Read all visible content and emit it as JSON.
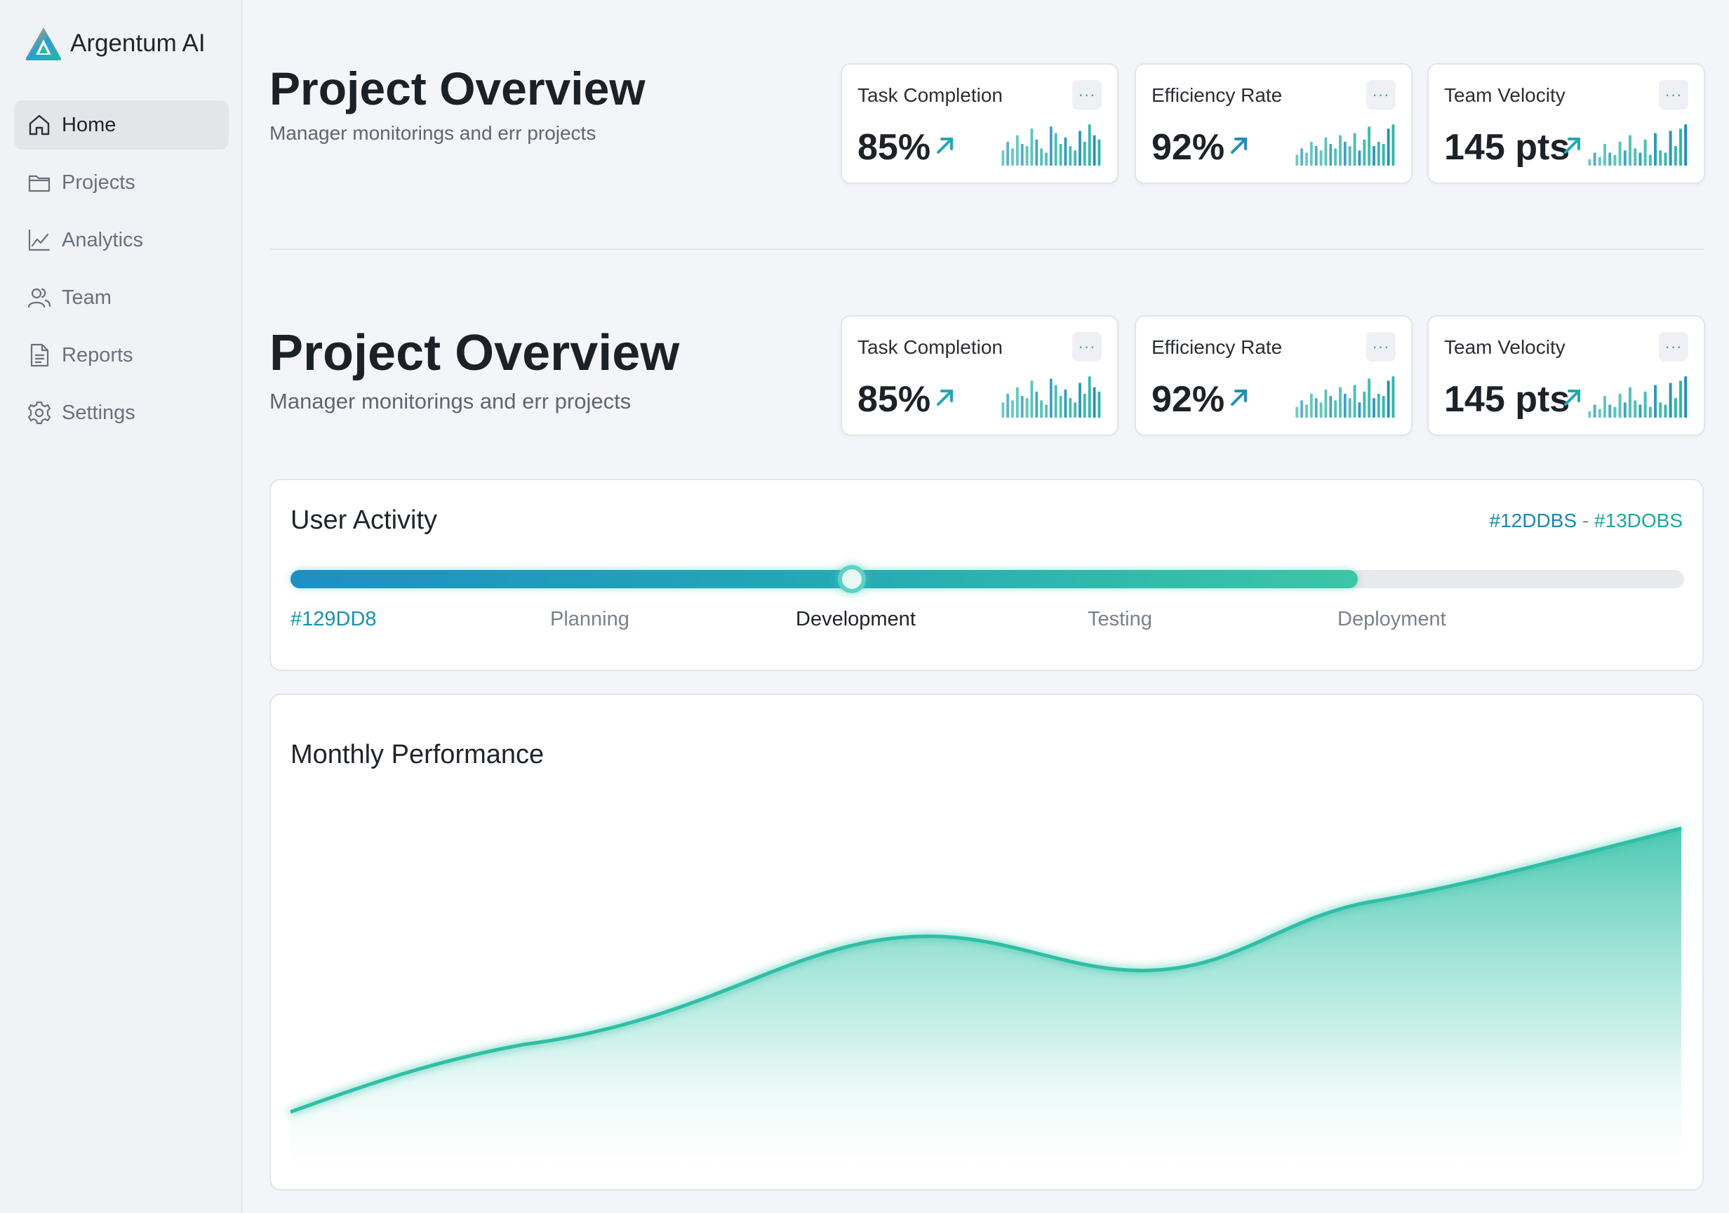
{
  "app": {
    "name": "Argentum AI"
  },
  "sidebar": {
    "items": [
      {
        "label": "Home",
        "icon": "home-icon",
        "active": true
      },
      {
        "label": "Projects",
        "icon": "folder-icon",
        "active": false
      },
      {
        "label": "Analytics",
        "icon": "line-chart-icon",
        "active": false
      },
      {
        "label": "Team",
        "icon": "users-icon",
        "active": false
      },
      {
        "label": "Reports",
        "icon": "document-icon",
        "active": false
      },
      {
        "label": "Settings",
        "icon": "gear-icon",
        "active": false
      }
    ]
  },
  "sections": [
    {
      "title": "Project Overview",
      "subtitle": "Manager monitorings and err projects",
      "cards": [
        {
          "title": "Task Completion",
          "value": "85%",
          "trend": "up",
          "menu": "···",
          "spark": [
            0.35,
            0.55,
            0.4,
            0.7,
            0.5,
            0.45,
            0.85,
            0.6,
            0.4,
            0.3,
            0.9,
            0.75,
            0.5,
            0.65,
            0.45,
            0.35,
            0.8,
            0.55,
            0.95,
            0.7,
            0.6
          ]
        },
        {
          "title": "Efficiency Rate",
          "value": "92%",
          "trend": "up",
          "menu": "···",
          "spark": [
            0.25,
            0.4,
            0.3,
            0.55,
            0.45,
            0.35,
            0.65,
            0.5,
            0.4,
            0.7,
            0.55,
            0.45,
            0.75,
            0.35,
            0.6,
            0.9,
            0.45,
            0.55,
            0.5,
            0.85,
            0.95
          ]
        },
        {
          "title": "Team Velocity",
          "value": "145 pts",
          "trend": "up",
          "menu": "···",
          "spark": [
            0.15,
            0.3,
            0.2,
            0.5,
            0.3,
            0.25,
            0.55,
            0.35,
            0.7,
            0.4,
            0.3,
            0.6,
            0.25,
            0.75,
            0.35,
            0.3,
            0.8,
            0.45,
            0.85,
            0.95
          ]
        }
      ]
    },
    {
      "title": "Project Overview",
      "subtitle": "Manager monitorings and err projects",
      "cards": [
        {
          "title": "Task Completion",
          "value": "85%",
          "trend": "up",
          "menu": "···",
          "spark": [
            0.35,
            0.55,
            0.4,
            0.7,
            0.5,
            0.45,
            0.85,
            0.6,
            0.4,
            0.3,
            0.9,
            0.75,
            0.5,
            0.65,
            0.45,
            0.35,
            0.8,
            0.55,
            0.95,
            0.7,
            0.6
          ]
        },
        {
          "title": "Efficiency Rate",
          "value": "92%",
          "trend": "up",
          "menu": "···",
          "spark": [
            0.25,
            0.4,
            0.3,
            0.55,
            0.45,
            0.35,
            0.65,
            0.5,
            0.4,
            0.7,
            0.55,
            0.45,
            0.75,
            0.35,
            0.6,
            0.9,
            0.45,
            0.55,
            0.5,
            0.85,
            0.95
          ]
        },
        {
          "title": "Team Velocity",
          "value": "145 pts",
          "trend": "up",
          "menu": "···",
          "spark": [
            0.15,
            0.3,
            0.2,
            0.5,
            0.3,
            0.25,
            0.55,
            0.35,
            0.7,
            0.4,
            0.3,
            0.6,
            0.25,
            0.75,
            0.35,
            0.3,
            0.8,
            0.45,
            0.85,
            0.95
          ]
        }
      ]
    }
  ],
  "activity": {
    "title": "User Activity",
    "range_start": "#12DDBS",
    "range_sep": "-",
    "range_end": "#13DOBS",
    "progress": 0.766,
    "knob_position": 0.403,
    "stages": [
      "#129DD8",
      "Planning",
      "Development",
      "Testing",
      "Deployment"
    ],
    "current_stage": "Development"
  },
  "performance": {
    "title": "Monthly Performance"
  },
  "colors": {
    "accent_blue": "#1e8fc4",
    "accent_teal": "#2ebfa5",
    "spark_teal": "#2cb6a8",
    "spark_blue": "#1f8fb8"
  }
}
